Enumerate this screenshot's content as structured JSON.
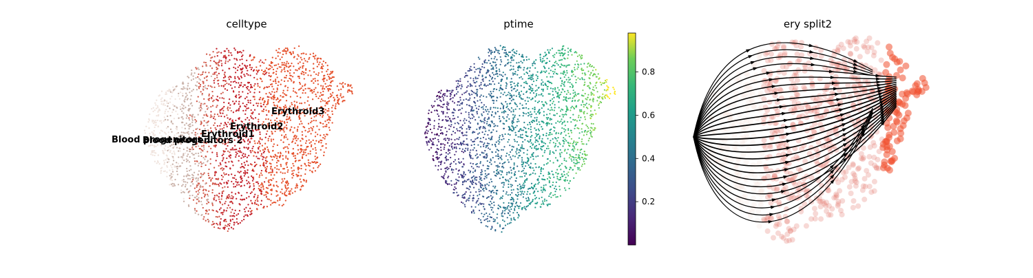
{
  "chart_data": [
    {
      "type": "scatter",
      "title": "celltype",
      "xlabel": "",
      "ylabel": "",
      "grid": false,
      "legend": "on data",
      "categories": [
        {
          "name": "Blood progenitors 1",
          "label": "Blood progenitors 1",
          "color": "#f0e4de"
        },
        {
          "name": "Blood progenitors 2",
          "label": "Blood progenitors 2",
          "color": "#c9b1a8"
        },
        {
          "name": "Erythroid1",
          "label": "Erythroid1",
          "color": "#d25a4a"
        },
        {
          "name": "Erythroid2",
          "label": "Erythroid2",
          "color": "#c3222b"
        },
        {
          "name": "Erythroid3",
          "label": "Erythroid3",
          "color": "#e5512c"
        }
      ],
      "labels_shown": [
        "Blood progenitors 1",
        "Blood progenitors 2",
        "Erythroid1",
        "Erythroid2",
        "Erythroid3"
      ]
    },
    {
      "type": "scatter",
      "title": "ptime",
      "xlabel": "",
      "ylabel": "",
      "grid": false,
      "colormap": "viridis",
      "colorbar": {
        "range": [
          0.0,
          0.98
        ],
        "ticks": [
          0.2,
          0.4,
          0.6,
          0.8
        ],
        "tick_labels": [
          "0.2",
          "0.4",
          "0.6",
          "0.8"
        ]
      }
    },
    {
      "type": "scatter",
      "title": "ery split2",
      "xlabel": "",
      "ylabel": "",
      "grid": false,
      "overlay": "velocity streamlines",
      "point_colors": [
        "#f3e3dc",
        "#e2786b",
        "#f0512f"
      ]
    }
  ]
}
